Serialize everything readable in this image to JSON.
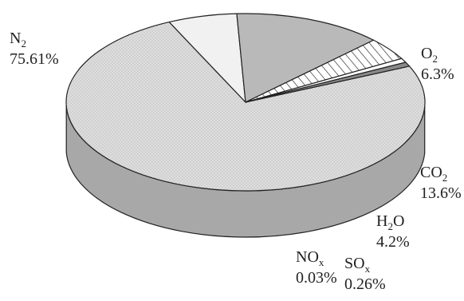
{
  "chart_data": {
    "type": "pie",
    "title": "",
    "three_d": true,
    "legend": "none",
    "slices": [
      {
        "base": "N",
        "sub": "2",
        "percent_label": "75.61%",
        "value": 75.61,
        "fill": "#dcdcdc",
        "fill_pattern": "dots"
      },
      {
        "base": "O",
        "sub": "2",
        "percent_label": "6.3%",
        "value": 6.3,
        "fill": "#f1f1f1",
        "fill_pattern": "solid"
      },
      {
        "base": "CO",
        "sub": "2",
        "percent_label": "13.6%",
        "value": 13.6,
        "fill": "#b9b9b9",
        "fill_pattern": "solid"
      },
      {
        "base": "H",
        "sub": "2",
        "tail": "O",
        "percent_label": "4.2%",
        "value": 4.2,
        "fill": "#ffffff",
        "fill_pattern": "diagonal-hatch"
      },
      {
        "base": "NO",
        "sub": "x",
        "percent_label": "0.03%",
        "value": 0.03,
        "fill": "#ffffff",
        "fill_pattern": "solid"
      },
      {
        "base": "SO",
        "sub": "x",
        "percent_label": "0.26%",
        "value": 0.26,
        "fill": "#8a8a8a",
        "fill_pattern": "solid"
      }
    ]
  }
}
